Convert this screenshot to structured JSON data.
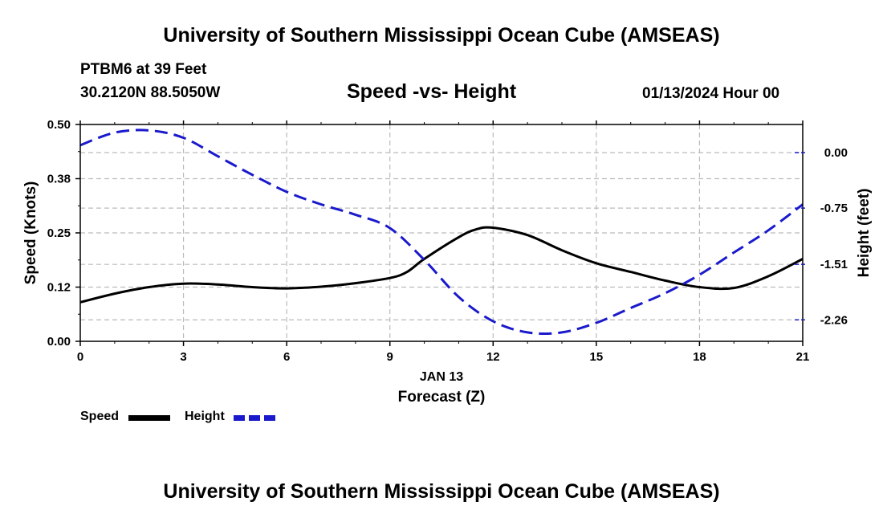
{
  "header": {
    "title": "University of Southern Mississippi Ocean Cube (AMSEAS)",
    "station": "PTBM6 at 39 Feet",
    "coords": "30.2120N  88.5050W",
    "subtitle": "Speed -vs- Height",
    "datetime": "01/13/2024 Hour 00"
  },
  "footer": {
    "title": "University of Southern Mississippi Ocean Cube (AMSEAS)"
  },
  "legend": {
    "speed_label": "Speed",
    "height_label": "Height"
  },
  "colors": {
    "speed": "#000000",
    "height": "#1a1acc",
    "grid": "#bbbbbb"
  },
  "chart_data": {
    "type": "line",
    "xlabel_date": "JAN 13",
    "xlabel": "Forecast (Z)",
    "ylabel_left": "Speed (Knots)",
    "ylabel_right": "Height (feet)",
    "xlim": [
      0,
      21
    ],
    "ylim_left": [
      0,
      0.5
    ],
    "ylim_right": [
      -2.55,
      0.38
    ],
    "x_ticks": [
      0,
      3,
      6,
      9,
      12,
      15,
      18,
      21
    ],
    "y_left_ticks": [
      0.0,
      0.125,
      0.25,
      0.375,
      0.5
    ],
    "y_left_tick_labels": [
      "0.00",
      "0.12",
      "0.25",
      "0.38",
      "0.50"
    ],
    "y_right_ticks": [
      0.0,
      -0.75,
      -1.51,
      -2.26
    ],
    "y_right_tick_labels": [
      "0.00",
      "-0.75",
      "-1.51",
      "-2.26"
    ],
    "grid": true,
    "series": [
      {
        "name": "Speed",
        "axis": "left",
        "style": "solid",
        "x": [
          0,
          1,
          2,
          3,
          4,
          5,
          6,
          7,
          8,
          9,
          9.5,
          10,
          11,
          11.5,
          12,
          13,
          14,
          15,
          16,
          17,
          18,
          19,
          20,
          21
        ],
        "y": [
          0.09,
          0.11,
          0.125,
          0.133,
          0.131,
          0.125,
          0.122,
          0.126,
          0.134,
          0.146,
          0.16,
          0.19,
          0.24,
          0.258,
          0.262,
          0.245,
          0.21,
          0.18,
          0.16,
          0.14,
          0.125,
          0.123,
          0.15,
          0.19
        ]
      },
      {
        "name": "Height",
        "axis": "right",
        "style": "dashed",
        "x": [
          0,
          1,
          2,
          3,
          4,
          5,
          6,
          7,
          8,
          9,
          10,
          11,
          12,
          13,
          14,
          15,
          16,
          17,
          18,
          19,
          20,
          21
        ],
        "y": [
          0.1,
          0.27,
          0.3,
          0.2,
          -0.05,
          -0.3,
          -0.53,
          -0.7,
          -0.84,
          -1.02,
          -1.45,
          -1.95,
          -2.28,
          -2.43,
          -2.43,
          -2.3,
          -2.1,
          -1.9,
          -1.65,
          -1.35,
          -1.05,
          -0.7
        ]
      }
    ]
  }
}
